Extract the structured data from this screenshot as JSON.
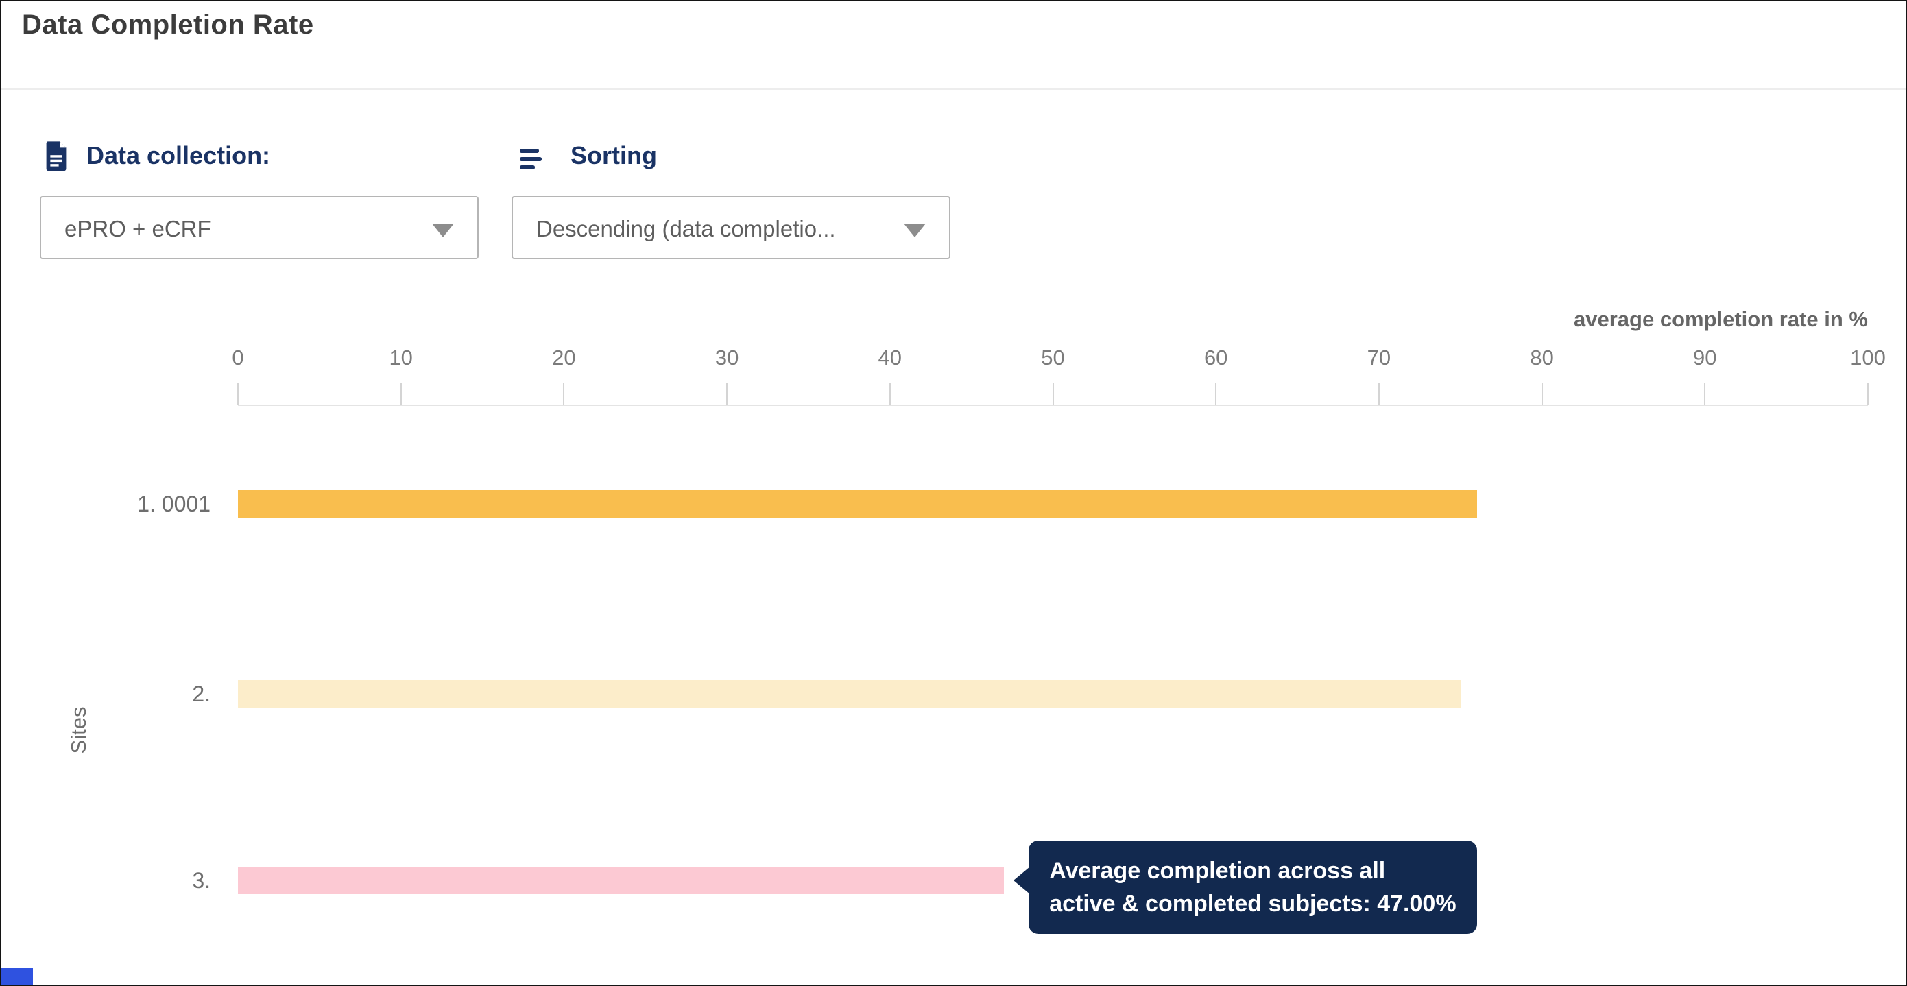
{
  "header": {
    "title": "Data Completion Rate"
  },
  "controls": {
    "data_collection": {
      "icon": "document-icon",
      "label": "Data collection:",
      "value": "ePRO + eCRF"
    },
    "sorting": {
      "icon": "sort-lines-icon",
      "label": "Sorting",
      "value": "Descending (data completio..."
    }
  },
  "chart_data": {
    "type": "bar",
    "orientation": "horizontal",
    "axis_title": "average completion rate in %",
    "ylabel": "Sites",
    "xlim": [
      0,
      100
    ],
    "x_ticks": [
      0,
      10,
      20,
      30,
      40,
      50,
      60,
      70,
      80,
      90,
      100
    ],
    "grid": false,
    "categories": [
      "1. 0001",
      "2.",
      "3."
    ],
    "values": [
      76,
      75,
      47
    ],
    "bar_colors": [
      "#F9BE4E",
      "#FCEDCA",
      "#FCC9D3"
    ],
    "legend": null,
    "tooltip": {
      "target_index": 2,
      "line1": "Average completion across all",
      "line2": "active & completed subjects: 47.00%",
      "value_pct": 47
    }
  },
  "colors": {
    "accent_navy": "#1A3365",
    "tooltip_bg": "#12294F",
    "title_text": "#3C3C3C",
    "muted_text": "#6E6E6E",
    "axis_line": "#E4E4E4",
    "tick_mark": "#D4D4D4",
    "partial_element_blue": "#2F52E0"
  }
}
